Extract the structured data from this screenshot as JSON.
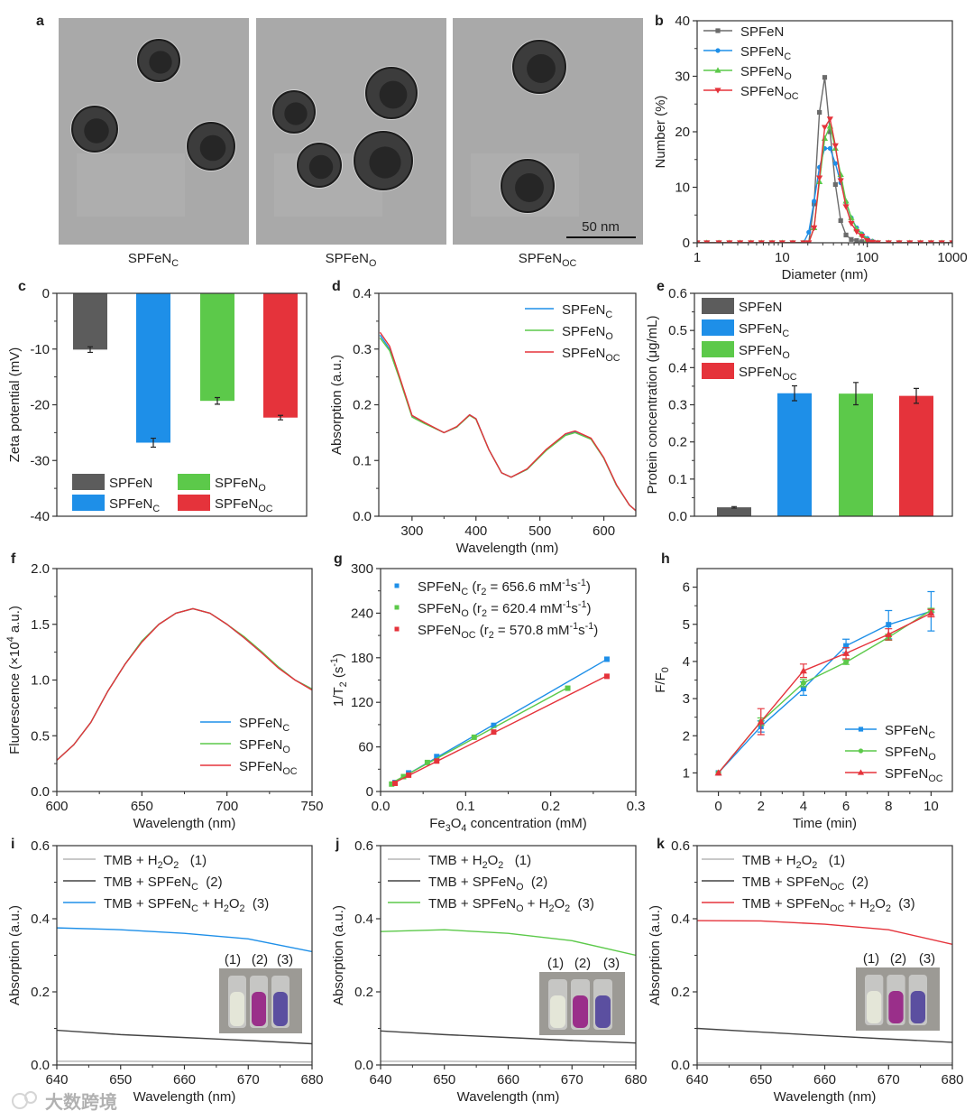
{
  "tem_panel": {
    "panel_label": "a",
    "captions": [
      "SPFeN_{C}",
      "SPFeN_{O}",
      "SPFeN_{OC}"
    ],
    "scale_bar": "50 nm"
  },
  "watermark": "大数跨境",
  "chart_data": [
    {
      "id": "b",
      "panel_label": "b",
      "type": "line",
      "xscale": "log",
      "xlim": [
        1,
        1000
      ],
      "ylim": [
        0,
        40
      ],
      "xticks": [
        1,
        10,
        100,
        1000
      ],
      "xticklabels": [
        "1",
        "10",
        "100",
        "1000"
      ],
      "yticks": [
        0,
        10,
        20,
        30,
        40
      ],
      "yticklabels": [
        "0",
        "10",
        "20",
        "30",
        "40"
      ],
      "xlabel": "Diameter (nm)",
      "ylabel": "Number (%)",
      "legend": "top-left",
      "x": [
        1,
        1.3,
        1.8,
        2.4,
        3.2,
        4.3,
        5.7,
        7.6,
        10,
        13.3,
        17.8,
        20.5,
        23.7,
        27.4,
        31.6,
        36.5,
        42.2,
        48.7,
        56.2,
        64.9,
        75,
        86.6,
        100,
        115,
        133,
        178,
        237,
        316,
        422,
        562,
        750,
        1000
      ],
      "series": [
        {
          "name": "SPFeN",
          "color": "#6b6b6b",
          "marker": "square",
          "y": [
            0,
            0,
            0,
            0,
            0,
            0,
            0,
            0,
            0,
            0,
            0,
            0,
            7,
            23.5,
            29.8,
            20,
            10.5,
            4,
            1.4,
            0.6,
            0.4,
            0.2,
            0,
            0,
            0,
            0,
            0,
            0,
            0,
            0,
            0,
            0
          ]
        },
        {
          "name": "SPFeN_{C}",
          "color": "#1e8fe8",
          "marker": "circle",
          "y": [
            0,
            0,
            0,
            0,
            0,
            0,
            0,
            0,
            0,
            0,
            0,
            1.9,
            7.5,
            13.6,
            17,
            17,
            14.3,
            10.8,
            7.3,
            4.5,
            2.7,
            1.6,
            0.8,
            0.3,
            0,
            0,
            0,
            0,
            0,
            0,
            0,
            0
          ]
        },
        {
          "name": "SPFeN_{O}",
          "color": "#5cc94a",
          "marker": "triangle",
          "y": [
            0,
            0,
            0,
            0,
            0,
            0,
            0,
            0,
            0,
            0,
            0,
            0,
            2.7,
            11,
            18.8,
            21,
            17,
            12.3,
            7.5,
            4.5,
            2.5,
            1.5,
            0.6,
            0.2,
            0,
            0,
            0,
            0,
            0,
            0,
            0,
            0
          ]
        },
        {
          "name": "SPFeN_{OC}",
          "color": "#e5333b",
          "marker": "triangle-down",
          "y": [
            0,
            0,
            0,
            0,
            0,
            0,
            0,
            0,
            0,
            0,
            0,
            0,
            2.7,
            11.7,
            20.8,
            22.3,
            17.5,
            11.2,
            6.5,
            3.5,
            2,
            1.2,
            0.4,
            0.1,
            0,
            0,
            0,
            0,
            0,
            0,
            0,
            0
          ]
        }
      ]
    },
    {
      "id": "c",
      "panel_label": "c",
      "type": "bar",
      "ylim": [
        -40,
        0
      ],
      "yticks": [
        0,
        -10,
        -20,
        -30,
        -40
      ],
      "yticklabels": [
        "0",
        "-10",
        "-20",
        "-30",
        "-40"
      ],
      "xlabel": "",
      "ylabel": "Zeta potential (mV)",
      "legend": "bottom",
      "bars": [
        {
          "name": "SPFeN",
          "value": -10.1,
          "error": 0.5,
          "color": "#5c5c5c"
        },
        {
          "name": "SPFeN_{C}",
          "value": -26.8,
          "error": 0.8,
          "color": "#1e8fe8"
        },
        {
          "name": "SPFeN_{O}",
          "value": -19.3,
          "error": 0.6,
          "color": "#5cc94a"
        },
        {
          "name": "SPFeN_{OC}",
          "value": -22.3,
          "error": 0.4,
          "color": "#e5333b"
        }
      ]
    },
    {
      "id": "d",
      "panel_label": "d",
      "type": "line",
      "xlim": [
        248,
        650
      ],
      "ylim": [
        0,
        0.4
      ],
      "xticks": [
        300,
        400,
        500,
        600
      ],
      "xticklabels": [
        "300",
        "400",
        "500",
        "600"
      ],
      "yticks": [
        0,
        0.1,
        0.2,
        0.3,
        0.4
      ],
      "yticklabels": [
        "0.0",
        "0.1",
        "0.2",
        "0.3",
        "0.4"
      ],
      "xlabel": "Wavelength (nm)",
      "ylabel": "Absorption (a.u.)",
      "legend": "top-right",
      "x": [
        250,
        265,
        280,
        300,
        320,
        350,
        370,
        390,
        400,
        420,
        440,
        455,
        480,
        510,
        540,
        555,
        580,
        600,
        620,
        640,
        650
      ],
      "series": [
        {
          "name": "SPFeN_{C}",
          "color": "#1e8fe8",
          "y": [
            0.325,
            0.3,
            0.25,
            0.18,
            0.167,
            0.15,
            0.16,
            0.182,
            0.175,
            0.12,
            0.078,
            0.07,
            0.084,
            0.119,
            0.146,
            0.151,
            0.139,
            0.104,
            0.055,
            0.02,
            0.01
          ]
        },
        {
          "name": "SPFeN_{O}",
          "color": "#5cc94a",
          "y": [
            0.32,
            0.297,
            0.248,
            0.178,
            0.166,
            0.15,
            0.16,
            0.181,
            0.174,
            0.12,
            0.078,
            0.07,
            0.084,
            0.118,
            0.145,
            0.15,
            0.138,
            0.104,
            0.055,
            0.02,
            0.01
          ]
        },
        {
          "name": "SPFeN_{OC}",
          "color": "#e5333b",
          "y": [
            0.33,
            0.305,
            0.252,
            0.181,
            0.168,
            0.15,
            0.161,
            0.182,
            0.175,
            0.12,
            0.078,
            0.07,
            0.085,
            0.12,
            0.148,
            0.153,
            0.14,
            0.105,
            0.056,
            0.02,
            0.01
          ]
        }
      ]
    },
    {
      "id": "e",
      "panel_label": "e",
      "type": "bar",
      "ylim": [
        0,
        0.6
      ],
      "yticks": [
        0,
        0.1,
        0.2,
        0.3,
        0.4,
        0.5,
        0.6
      ],
      "yticklabels": [
        "0.0",
        "0.1",
        "0.2",
        "0.3",
        "0.4",
        "0.5",
        "0.6"
      ],
      "xlabel": "",
      "ylabel": "Protein concentration (μg/mL)",
      "legend": "top-left",
      "bars": [
        {
          "name": "SPFeN",
          "value": 0.024,
          "error": 0.002,
          "color": "#5c5c5c"
        },
        {
          "name": "SPFeN_{C}",
          "value": 0.331,
          "error": 0.02,
          "color": "#1e8fe8"
        },
        {
          "name": "SPFeN_{O}",
          "value": 0.33,
          "error": 0.03,
          "color": "#5cc94a"
        },
        {
          "name": "SPFeN_{OC}",
          "value": 0.324,
          "error": 0.02,
          "color": "#e5333b"
        }
      ]
    },
    {
      "id": "f",
      "panel_label": "f",
      "type": "line",
      "xlim": [
        600,
        750
      ],
      "ylim": [
        0,
        2.0
      ],
      "xticks": [
        600,
        650,
        700,
        750
      ],
      "xticklabels": [
        "600",
        "650",
        "700",
        "750"
      ],
      "yticks": [
        0,
        0.5,
        1.0,
        1.5,
        2.0
      ],
      "yticklabels": [
        "0.0",
        "0.5",
        "1.0",
        "1.5",
        "2.0"
      ],
      "xlabel": "Wavelength (nm)",
      "ylabel": "Fluorescence (×10^{4} a.u.)",
      "legend": "bottom-right",
      "x": [
        600,
        610,
        620,
        630,
        640,
        650,
        660,
        670,
        680,
        690,
        700,
        710,
        720,
        730,
        740,
        750
      ],
      "series": [
        {
          "name": "SPFeN_{C}",
          "color": "#1e8fe8",
          "y": [
            0.28,
            0.42,
            0.62,
            0.9,
            1.14,
            1.35,
            1.5,
            1.6,
            1.64,
            1.6,
            1.5,
            1.38,
            1.25,
            1.12,
            1.0,
            0.92
          ]
        },
        {
          "name": "SPFeN_{O}",
          "color": "#5cc94a",
          "y": [
            0.28,
            0.42,
            0.62,
            0.9,
            1.14,
            1.35,
            1.5,
            1.6,
            1.64,
            1.6,
            1.5,
            1.39,
            1.26,
            1.12,
            1.0,
            0.92
          ]
        },
        {
          "name": "SPFeN_{OC}",
          "color": "#e5333b",
          "y": [
            0.28,
            0.42,
            0.62,
            0.9,
            1.14,
            1.34,
            1.5,
            1.6,
            1.64,
            1.6,
            1.5,
            1.38,
            1.25,
            1.11,
            1.0,
            0.91
          ]
        }
      ]
    },
    {
      "id": "g",
      "panel_label": "g",
      "type": "scatter",
      "xlim": [
        0,
        0.3
      ],
      "ylim": [
        0,
        300
      ],
      "xticks": [
        0,
        0.1,
        0.2,
        0.3
      ],
      "xticklabels": [
        "0.0",
        "0.1",
        "0.2",
        "0.3"
      ],
      "yticks": [
        0,
        60,
        120,
        180,
        240,
        300
      ],
      "yticklabels": [
        "0",
        "60",
        "120",
        "180",
        "240",
        "300"
      ],
      "xlabel": "Fe_{3}O_{4} concentration (mM)",
      "ylabel": "1/T_{2} (s^{-1})",
      "legend": "top-left",
      "series": [
        {
          "name": "SPFeN_{C} (r_{2} = 656.6 mM^{-1}s^{-1})",
          "color": "#1e8fe8",
          "marker": "square",
          "x": [
            0.017,
            0.033,
            0.066,
            0.133,
            0.266
          ],
          "y": [
            12,
            25,
            47,
            89,
            178
          ]
        },
        {
          "name": "SPFeN_{O} (r_{2} = 620.4 mM^{-1}s^{-1})",
          "color": "#5cc94a",
          "marker": "square",
          "x": [
            0.013,
            0.027,
            0.055,
            0.11,
            0.22
          ],
          "y": [
            10,
            20,
            39,
            73,
            139
          ]
        },
        {
          "name": "SPFeN_{OC} (r_{2} = 570.8 mM^{-1}s^{-1})",
          "color": "#e5333b",
          "marker": "square",
          "x": [
            0.017,
            0.033,
            0.066,
            0.133,
            0.266
          ],
          "y": [
            11,
            22,
            41,
            80,
            155
          ]
        }
      ]
    },
    {
      "id": "h",
      "panel_label": "h",
      "type": "line",
      "xlim": [
        -1,
        11
      ],
      "ylim": [
        0.5,
        6.5
      ],
      "xticks": [
        0,
        2,
        4,
        6,
        8,
        10
      ],
      "xticklabels": [
        "0",
        "2",
        "4",
        "6",
        "8",
        "10"
      ],
      "yticks": [
        1,
        2,
        3,
        4,
        5,
        6
      ],
      "yticklabels": [
        "1",
        "2",
        "3",
        "4",
        "5",
        "6"
      ],
      "xlabel": "Time (min)",
      "ylabel": "F/F_{0}",
      "legend": "bottom-right",
      "x": [
        0,
        2,
        4,
        6,
        8,
        10
      ],
      "series": [
        {
          "name": "SPFeN_{C}",
          "color": "#1e8fe8",
          "marker": "square",
          "y": [
            1,
            2.25,
            3.27,
            4.42,
            4.99,
            5.35
          ],
          "err": [
            0,
            0.15,
            0.18,
            0.18,
            0.38,
            0.53
          ]
        },
        {
          "name": "SPFeN_{O}",
          "color": "#5cc94a",
          "marker": "circle",
          "y": [
            1,
            2.38,
            3.42,
            3.98,
            4.65,
            5.38
          ],
          "err": [
            0,
            0.1,
            0.1,
            0.06,
            0.08,
            0.05
          ]
        },
        {
          "name": "SPFeN_{OC}",
          "color": "#e5333b",
          "marker": "triangle",
          "y": [
            1,
            2.38,
            3.75,
            4.22,
            4.73,
            5.3
          ],
          "err": [
            0,
            0.35,
            0.18,
            0.15,
            0.15,
            0.1
          ]
        }
      ]
    },
    {
      "id": "i",
      "panel_label": "i",
      "type": "line",
      "xlim": [
        640,
        680
      ],
      "ylim": [
        0,
        0.6
      ],
      "xticks": [
        640,
        650,
        660,
        670,
        680
      ],
      "xticklabels": [
        "640",
        "650",
        "660",
        "670",
        "680"
      ],
      "yticks": [
        0,
        0.2,
        0.4,
        0.6
      ],
      "yticklabels": [
        "0.0",
        "0.2",
        "0.4",
        "0.6"
      ],
      "xlabel": "Wavelength (nm)",
      "ylabel": "Absorption (a.u.)",
      "legend": "top-left",
      "x": [
        640,
        650,
        660,
        670,
        680
      ],
      "series": [
        {
          "name": "TMB + H_{2}O_{2}   (1)",
          "color": "#b5b5b5",
          "y": [
            0.01,
            0.01,
            0.009,
            0.009,
            0.008
          ]
        },
        {
          "name": "TMB + SPFeN_{C}  (2)",
          "color": "#444444",
          "y": [
            0.095,
            0.083,
            0.075,
            0.067,
            0.058
          ]
        },
        {
          "name": "TMB + SPFeN_{C} + H_{2}O_{2}  (3)",
          "color": "#1e8fe8",
          "y": [
            0.375,
            0.37,
            0.36,
            0.345,
            0.31
          ]
        }
      ],
      "inset_labels": [
        "(1)",
        "(2)",
        "(3)"
      ]
    },
    {
      "id": "j",
      "panel_label": "j",
      "type": "line",
      "xlim": [
        640,
        680
      ],
      "ylim": [
        0,
        0.6
      ],
      "xticks": [
        640,
        650,
        660,
        670,
        680
      ],
      "xticklabels": [
        "640",
        "650",
        "660",
        "670",
        "680"
      ],
      "yticks": [
        0,
        0.2,
        0.4,
        0.6
      ],
      "yticklabels": [
        "0.0",
        "0.2",
        "0.4",
        "0.6"
      ],
      "xlabel": "Wavelength (nm)",
      "ylabel": "Absorption (a.u.)",
      "legend": "top-left",
      "x": [
        640,
        650,
        660,
        670,
        680
      ],
      "series": [
        {
          "name": "TMB + H_{2}O_{2}   (1)",
          "color": "#b5b5b5",
          "y": [
            0.01,
            0.01,
            0.009,
            0.009,
            0.008
          ]
        },
        {
          "name": "TMB + SPFeN_{O}  (2)",
          "color": "#444444",
          "y": [
            0.093,
            0.083,
            0.075,
            0.067,
            0.06
          ]
        },
        {
          "name": "TMB + SPFeN_{O} + H_{2}O_{2}  (3)",
          "color": "#5cc94a",
          "y": [
            0.365,
            0.37,
            0.36,
            0.34,
            0.3
          ]
        }
      ],
      "inset_labels": [
        "(1)",
        "(2)",
        "(3)"
      ]
    },
    {
      "id": "k",
      "panel_label": "k",
      "type": "line",
      "xlim": [
        640,
        680
      ],
      "ylim": [
        0,
        0.6
      ],
      "xticks": [
        640,
        650,
        660,
        670,
        680
      ],
      "xticklabels": [
        "640",
        "650",
        "660",
        "670",
        "680"
      ],
      "yticks": [
        0,
        0.2,
        0.4,
        0.6
      ],
      "yticklabels": [
        "0.0",
        "0.2",
        "0.4",
        "0.6"
      ],
      "xlabel": "Wavelength (nm)",
      "ylabel": "Absorption (a.u.)",
      "legend": "top-left",
      "x": [
        640,
        650,
        660,
        670,
        680
      ],
      "series": [
        {
          "name": "TMB + H_{2}O_{2}   (1)",
          "color": "#b5b5b5",
          "y": [
            0.005,
            0.005,
            0.005,
            0.005,
            0.005
          ]
        },
        {
          "name": "TMB + SPFeN_{OC}  (2)",
          "color": "#444444",
          "y": [
            0.1,
            0.09,
            0.08,
            0.071,
            0.062
          ]
        },
        {
          "name": "TMB + SPFeN_{OC} + H_{2}O_{2}  (3)",
          "color": "#e5333b",
          "y": [
            0.395,
            0.394,
            0.385,
            0.37,
            0.33
          ]
        }
      ],
      "inset_labels": [
        "(1)",
        "(2)",
        "(3)"
      ]
    }
  ]
}
